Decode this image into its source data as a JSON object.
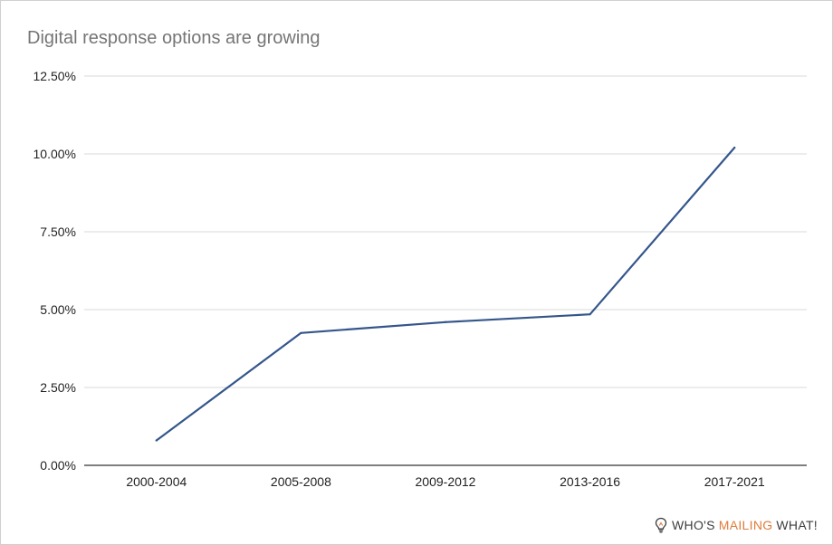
{
  "chart_data": {
    "type": "line",
    "title": "Digital response options are growing",
    "categories": [
      "2000-2004",
      "2005-2008",
      "2009-2012",
      "2013-2016",
      "2017-2021"
    ],
    "series": [
      {
        "values": [
          0.8,
          4.25,
          4.6,
          4.85,
          10.2
        ]
      }
    ],
    "y_tick_labels": [
      "0.00%",
      "2.50%",
      "5.00%",
      "7.50%",
      "10.00%",
      "12.50%"
    ],
    "y_ticks": [
      0,
      2.5,
      5,
      7.5,
      10,
      12.5
    ],
    "ylim": [
      0,
      12.5
    ],
    "unit": "%",
    "grid": true,
    "legend": "none",
    "colors": {
      "line": "#34568b",
      "grid": "#d9d9d9",
      "axis": "#333333",
      "tick_text": "#222222"
    }
  },
  "branding": {
    "icon": "lightbulb-icon",
    "part_a": "WHO'S ",
    "part_b": "MAILING",
    "part_c": " WHAT!",
    "accent_color": "#e07b39"
  }
}
